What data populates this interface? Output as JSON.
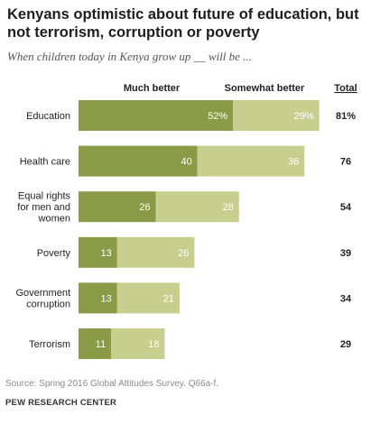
{
  "chart_data": {
    "type": "bar",
    "stacked": true,
    "orientation": "horizontal",
    "title": "Kenyans optimistic about future of education, but not terrorism, corruption or poverty",
    "subtitle": "When children today in Kenya grow up __ will be ...",
    "categories": [
      [
        "Education"
      ],
      [
        "Health care"
      ],
      [
        "Equal rights",
        "for men and",
        "women"
      ],
      [
        "Poverty"
      ],
      [
        "Government",
        "corruption"
      ],
      [
        "Terrorism"
      ]
    ],
    "series": [
      {
        "name": "Much better",
        "values": [
          52,
          40,
          26,
          13,
          13,
          11
        ],
        "labels": [
          "52%",
          "40",
          "26",
          "13",
          "13",
          "11"
        ],
        "color": "#8b9a46"
      },
      {
        "name": "Somewhat better",
        "values": [
          29,
          36,
          28,
          26,
          21,
          18
        ],
        "labels": [
          "29%",
          "36",
          "28",
          "26",
          "21",
          "18"
        ],
        "color": "#c6cf8e"
      }
    ],
    "total": {
      "name": "Total",
      "values": [
        "81%",
        "76",
        "54",
        "39",
        "34",
        "29"
      ]
    },
    "xlim": [
      0,
      82
    ],
    "grid": false,
    "legend": "top"
  },
  "footer": {
    "source": "Source: Spring 2016 Global Attitudes Survey. Q66a-f.",
    "credit": "PEW RESEARCH CENTER"
  }
}
